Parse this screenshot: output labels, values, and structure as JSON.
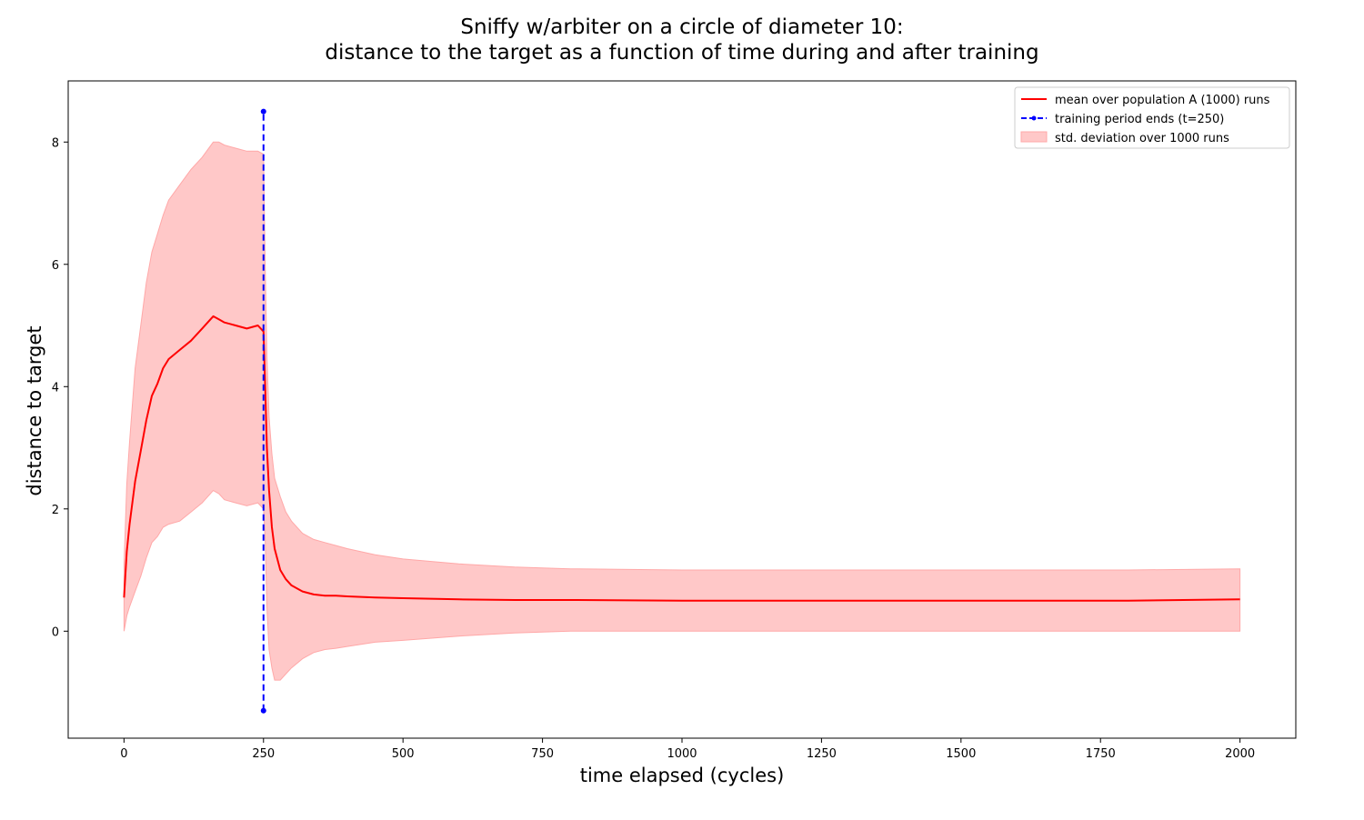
{
  "chart_data": {
    "type": "line",
    "title_line1": "Sniffy w/arbiter on a circle of diameter 10:",
    "title_line2": "distance to the target as a function of time during and after training",
    "xlabel": "time elapsed (cycles)",
    "ylabel": "distance to target",
    "xlim": [
      -100,
      2100
    ],
    "ylim": [
      -1.75,
      9.0
    ],
    "xticks": [
      0,
      250,
      500,
      750,
      1000,
      1250,
      1500,
      1750,
      2000
    ],
    "yticks": [
      0,
      2,
      4,
      6,
      8
    ],
    "grid": false,
    "legend_position": "top-right",
    "colors": {
      "mean": "#ff0000",
      "band": "#ffc8c8",
      "band_edge": "#ffa8a8",
      "training_line": "#0000ff"
    },
    "series": [
      {
        "name": "mean over population A (1000) runs",
        "style": "solid-line",
        "x": [
          0,
          5,
          10,
          20,
          30,
          40,
          50,
          60,
          70,
          80,
          100,
          120,
          140,
          160,
          170,
          180,
          200,
          220,
          240,
          250,
          253,
          256,
          260,
          265,
          270,
          280,
          290,
          300,
          320,
          340,
          360,
          380,
          400,
          450,
          500,
          600,
          700,
          800,
          1000,
          1200,
          1500,
          1800,
          2000
        ],
        "values": [
          0.55,
          1.3,
          1.75,
          2.45,
          2.95,
          3.45,
          3.85,
          4.05,
          4.3,
          4.45,
          4.6,
          4.75,
          4.95,
          5.15,
          5.1,
          5.05,
          5.0,
          4.95,
          5.0,
          4.9,
          4.0,
          3.0,
          2.3,
          1.7,
          1.35,
          1.0,
          0.85,
          0.75,
          0.65,
          0.6,
          0.58,
          0.58,
          0.57,
          0.55,
          0.54,
          0.52,
          0.51,
          0.51,
          0.5,
          0.5,
          0.5,
          0.5,
          0.52
        ]
      },
      {
        "name": "training period ends (t=250)",
        "style": "dashed-line-with-markers",
        "x": [
          250,
          250
        ],
        "values": [
          -1.3,
          8.5
        ]
      },
      {
        "name": "std. deviation over 1000 runs",
        "style": "filled-band",
        "x": [
          0,
          5,
          10,
          20,
          30,
          40,
          50,
          60,
          70,
          80,
          100,
          120,
          140,
          160,
          170,
          180,
          200,
          220,
          240,
          250,
          253,
          256,
          260,
          265,
          270,
          280,
          290,
          300,
          320,
          340,
          360,
          380,
          400,
          450,
          500,
          600,
          700,
          800,
          1000,
          1200,
          1500,
          1800,
          2000
        ],
        "upper": [
          1.1,
          2.4,
          3.1,
          4.3,
          5.0,
          5.7,
          6.2,
          6.5,
          6.8,
          7.05,
          7.3,
          7.55,
          7.75,
          8.0,
          8.0,
          7.95,
          7.9,
          7.85,
          7.85,
          7.8,
          6.0,
          4.5,
          3.5,
          2.9,
          2.5,
          2.2,
          1.95,
          1.8,
          1.6,
          1.5,
          1.45,
          1.4,
          1.35,
          1.25,
          1.18,
          1.1,
          1.05,
          1.02,
          1.0,
          1.0,
          1.0,
          1.0,
          1.02
        ],
        "lower": [
          0.0,
          0.25,
          0.4,
          0.65,
          0.9,
          1.2,
          1.45,
          1.55,
          1.7,
          1.75,
          1.8,
          1.95,
          2.1,
          2.3,
          2.25,
          2.15,
          2.1,
          2.05,
          2.1,
          2.0,
          1.5,
          0.4,
          -0.3,
          -0.6,
          -0.8,
          -0.8,
          -0.7,
          -0.6,
          -0.45,
          -0.35,
          -0.3,
          -0.28,
          -0.25,
          -0.18,
          -0.15,
          -0.08,
          -0.03,
          0.0,
          0.0,
          0.0,
          0.0,
          0.0,
          0.0
        ]
      }
    ]
  }
}
